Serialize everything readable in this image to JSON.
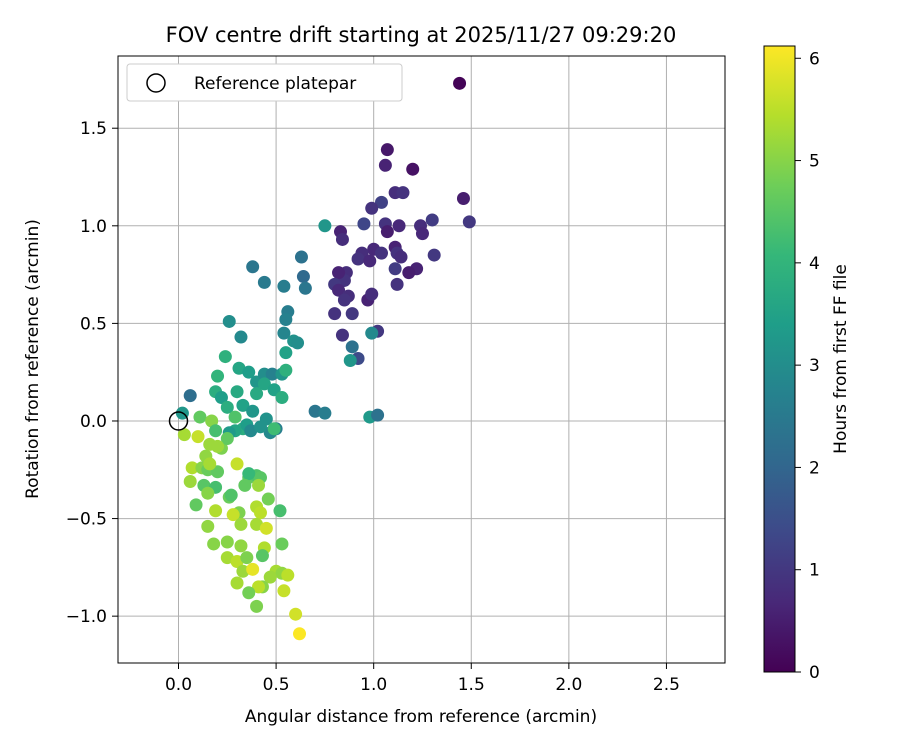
{
  "chart_data": {
    "type": "scatter",
    "title": "FOV centre drift starting at 2025/11/27 09:29:20",
    "xlabel": "Angular distance from reference (arcmin)",
    "ylabel": "Rotation from reference (arcmin)",
    "xlim": [
      -0.31,
      2.8
    ],
    "ylim": [
      -1.24,
      1.87
    ],
    "xticks": [
      0.0,
      0.5,
      1.0,
      1.5,
      2.0,
      2.5
    ],
    "xtick_labels": [
      "0.0",
      "0.5",
      "1.0",
      "1.5",
      "2.0",
      "2.5"
    ],
    "yticks": [
      -1.0,
      -0.5,
      0.0,
      0.5,
      1.0,
      1.5
    ],
    "ytick_labels": [
      "−1.0",
      "−0.5",
      "0.0",
      "0.5",
      "1.0",
      "1.5"
    ],
    "grid": true,
    "legend": {
      "placement": "top-left",
      "entries": [
        "Reference platepar"
      ]
    },
    "reference_point": {
      "x": 0.0,
      "y": 0.0
    },
    "colorbar": {
      "label": "Hours from first FF file",
      "range": [
        0,
        6.12
      ],
      "ticks": [
        0,
        1,
        2,
        3,
        4,
        5,
        6
      ],
      "tick_labels": [
        "0",
        "1",
        "2",
        "3",
        "4",
        "5",
        "6"
      ],
      "colormap": "viridis"
    },
    "colormap_stops": [
      "#440154",
      "#482878",
      "#3e4989",
      "#31688e",
      "#26828e",
      "#1f9e89",
      "#35b779",
      "#6ece58",
      "#b5de2b",
      "#fde725"
    ],
    "points": [
      [
        1.44,
        1.73,
        0.05
      ],
      [
        1.07,
        1.39,
        0.4
      ],
      [
        1.06,
        1.31,
        0.6
      ],
      [
        1.2,
        1.29,
        0.3
      ],
      [
        1.46,
        1.14,
        0.5
      ],
      [
        1.11,
        1.17,
        0.8
      ],
      [
        1.15,
        1.17,
        0.9
      ],
      [
        1.04,
        1.12,
        1.2
      ],
      [
        0.99,
        1.09,
        0.9
      ],
      [
        1.49,
        1.02,
        1.0
      ],
      [
        1.3,
        1.03,
        1.1
      ],
      [
        1.24,
        1.0,
        0.8
      ],
      [
        1.25,
        0.96,
        0.7
      ],
      [
        1.06,
        1.01,
        0.9
      ],
      [
        1.13,
        1.0,
        0.7
      ],
      [
        1.07,
        0.97,
        0.5
      ],
      [
        0.95,
        1.01,
        1.3
      ],
      [
        0.75,
        1.0,
        3.2
      ],
      [
        0.83,
        0.97,
        0.6
      ],
      [
        0.84,
        0.93,
        0.8
      ],
      [
        1.0,
        0.88,
        0.7
      ],
      [
        1.11,
        0.89,
        0.6
      ],
      [
        1.12,
        0.86,
        0.9
      ],
      [
        0.94,
        0.86,
        0.8
      ],
      [
        1.04,
        0.86,
        0.9
      ],
      [
        1.31,
        0.85,
        1.0
      ],
      [
        1.14,
        0.84,
        0.8
      ],
      [
        0.92,
        0.83,
        0.9
      ],
      [
        0.98,
        0.82,
        0.7
      ],
      [
        1.22,
        0.78,
        0.6
      ],
      [
        1.18,
        0.76,
        0.5
      ],
      [
        1.11,
        0.78,
        1.1
      ],
      [
        0.86,
        0.76,
        0.8
      ],
      [
        0.85,
        0.72,
        0.9
      ],
      [
        0.82,
        0.76,
        0.6
      ],
      [
        0.8,
        0.7,
        1.0
      ],
      [
        0.82,
        0.67,
        0.7
      ],
      [
        0.87,
        0.64,
        0.8
      ],
      [
        0.85,
        0.62,
        0.9
      ],
      [
        0.97,
        0.62,
        0.6
      ],
      [
        0.99,
        0.65,
        0.8
      ],
      [
        0.8,
        0.55,
        0.9
      ],
      [
        0.89,
        0.55,
        1.0
      ],
      [
        1.02,
        0.46,
        1.0
      ],
      [
        0.84,
        0.44,
        0.9
      ],
      [
        0.92,
        0.32,
        1.4
      ],
      [
        0.89,
        0.38,
        2.3
      ],
      [
        0.88,
        0.31,
        3.2
      ],
      [
        1.12,
        0.7,
        0.9
      ],
      [
        0.64,
        0.74,
        2.1
      ],
      [
        0.65,
        0.68,
        2.4
      ],
      [
        0.63,
        0.84,
        2.3
      ],
      [
        0.38,
        0.79,
        2.4
      ],
      [
        0.44,
        0.71,
        2.5
      ],
      [
        0.54,
        0.69,
        2.6
      ],
      [
        0.56,
        0.56,
        2.6
      ],
      [
        0.55,
        0.52,
        2.7
      ],
      [
        0.54,
        0.45,
        2.8
      ],
      [
        0.59,
        0.41,
        3.1
      ],
      [
        0.61,
        0.4,
        3.0
      ],
      [
        0.26,
        0.51,
        3.0
      ],
      [
        0.32,
        0.43,
        2.9
      ],
      [
        0.55,
        0.35,
        3.5
      ],
      [
        0.99,
        0.45,
        2.9
      ],
      [
        0.98,
        0.02,
        3.3
      ],
      [
        1.02,
        0.03,
        2.3
      ],
      [
        0.7,
        0.05,
        2.4
      ],
      [
        0.75,
        0.04,
        2.6
      ],
      [
        0.24,
        0.33,
        3.9
      ],
      [
        0.31,
        0.27,
        3.6
      ],
      [
        0.36,
        0.25,
        3.4
      ],
      [
        0.4,
        0.2,
        3.2
      ],
      [
        0.44,
        0.24,
        3.0
      ],
      [
        0.48,
        0.24,
        2.7
      ],
      [
        0.53,
        0.24,
        3.2
      ],
      [
        0.55,
        0.26,
        3.9
      ],
      [
        0.2,
        0.23,
        4.0
      ],
      [
        0.19,
        0.15,
        3.8
      ],
      [
        0.22,
        0.12,
        3.4
      ],
      [
        0.25,
        0.07,
        3.8
      ],
      [
        0.3,
        0.15,
        3.7
      ],
      [
        0.33,
        0.08,
        3.5
      ],
      [
        0.38,
        0.05,
        3.2
      ],
      [
        0.4,
        0.14,
        3.7
      ],
      [
        0.44,
        0.19,
        3.6
      ],
      [
        0.49,
        0.16,
        3.5
      ],
      [
        0.53,
        0.12,
        3.8
      ],
      [
        0.06,
        0.13,
        2.2
      ],
      [
        0.02,
        0.04,
        3.2
      ],
      [
        0.11,
        0.02,
        4.6
      ],
      [
        0.17,
        0.0,
        5.0
      ],
      [
        0.19,
        -0.05,
        4.3
      ],
      [
        0.29,
        0.02,
        4.4
      ],
      [
        0.33,
        -0.04,
        3.8
      ],
      [
        0.29,
        -0.05,
        3.6
      ],
      [
        0.26,
        -0.06,
        3.3
      ],
      [
        0.35,
        -0.02,
        3.4
      ],
      [
        0.37,
        -0.05,
        2.9
      ],
      [
        0.45,
        0.01,
        3.1
      ],
      [
        0.47,
        -0.06,
        2.9
      ],
      [
        0.42,
        -0.03,
        3.1
      ],
      [
        0.5,
        -0.04,
        2.6
      ],
      [
        0.49,
        -0.04,
        4.2
      ],
      [
        0.03,
        -0.07,
        5.3
      ],
      [
        0.1,
        -0.08,
        5.6
      ],
      [
        0.16,
        -0.12,
        5.2
      ],
      [
        0.22,
        -0.14,
        4.9
      ],
      [
        0.25,
        -0.09,
        4.6
      ],
      [
        0.14,
        -0.18,
        5.1
      ],
      [
        0.2,
        -0.13,
        5.2
      ],
      [
        0.07,
        -0.24,
        5.4
      ],
      [
        0.12,
        -0.24,
        5.0
      ],
      [
        0.15,
        -0.25,
        4.7
      ],
      [
        0.2,
        -0.26,
        4.6
      ],
      [
        0.16,
        -0.22,
        5.3
      ],
      [
        0.3,
        -0.22,
        5.6
      ],
      [
        0.36,
        -0.29,
        4.6
      ],
      [
        0.4,
        -0.28,
        4.4
      ],
      [
        0.42,
        -0.29,
        4.5
      ],
      [
        0.36,
        -0.27,
        4.1
      ],
      [
        0.06,
        -0.31,
        5.2
      ],
      [
        0.13,
        -0.33,
        4.5
      ],
      [
        0.19,
        -0.34,
        4.3
      ],
      [
        0.26,
        -0.39,
        4.7
      ],
      [
        0.34,
        -0.33,
        4.6
      ],
      [
        0.41,
        -0.33,
        5.2
      ],
      [
        0.15,
        -0.37,
        5.0
      ],
      [
        0.27,
        -0.38,
        4.4
      ],
      [
        0.46,
        -0.4,
        4.8
      ],
      [
        0.4,
        -0.44,
        5.4
      ],
      [
        0.42,
        -0.47,
        5.5
      ],
      [
        0.31,
        -0.47,
        4.9
      ],
      [
        0.09,
        -0.43,
        4.6
      ],
      [
        0.19,
        -0.46,
        5.4
      ],
      [
        0.28,
        -0.48,
        5.6
      ],
      [
        0.52,
        -0.46,
        4.3
      ],
      [
        0.15,
        -0.54,
        5.1
      ],
      [
        0.32,
        -0.53,
        5.2
      ],
      [
        0.4,
        -0.53,
        5.3
      ],
      [
        0.45,
        -0.55,
        5.7
      ],
      [
        0.18,
        -0.63,
        5.0
      ],
      [
        0.25,
        -0.62,
        5.0
      ],
      [
        0.32,
        -0.64,
        5.1
      ],
      [
        0.44,
        -0.65,
        5.4
      ],
      [
        0.53,
        -0.63,
        4.7
      ],
      [
        0.25,
        -0.7,
        5.3
      ],
      [
        0.3,
        -0.72,
        5.5
      ],
      [
        0.35,
        -0.7,
        4.9
      ],
      [
        0.43,
        -0.69,
        4.5
      ],
      [
        0.5,
        -0.77,
        5.3
      ],
      [
        0.53,
        -0.78,
        5.1
      ],
      [
        0.56,
        -0.79,
        5.5
      ],
      [
        0.33,
        -0.77,
        5.2
      ],
      [
        0.38,
        -0.76,
        5.9
      ],
      [
        0.47,
        -0.8,
        5.2
      ],
      [
        0.3,
        -0.83,
        5.3
      ],
      [
        0.43,
        -0.85,
        5.0
      ],
      [
        0.41,
        -0.85,
        5.5
      ],
      [
        0.36,
        -0.88,
        4.8
      ],
      [
        0.54,
        -0.87,
        5.6
      ],
      [
        0.4,
        -0.95,
        4.9
      ],
      [
        0.6,
        -0.99,
        5.7
      ],
      [
        0.62,
        -1.09,
        6.1
      ]
    ]
  }
}
